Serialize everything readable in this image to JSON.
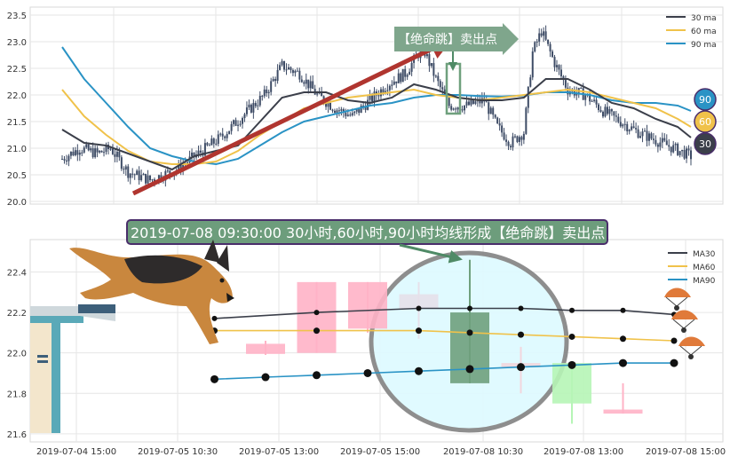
{
  "chart_data": [
    {
      "type": "line",
      "subtype": "candlestick-with-moving-averages",
      "title": "",
      "xlabel": "",
      "ylabel": "",
      "ylim": [
        19.95,
        23.65
      ],
      "y_ticks": [
        "20.0",
        "20.5",
        "21.0",
        "21.5",
        "22.0",
        "22.5",
        "23.0",
        "23.5"
      ],
      "grid": true,
      "legend_position": "top-right",
      "legend": [
        "30 ma",
        "60 ma",
        "90 ma"
      ],
      "colors": {
        "ma30": "#3b3f4a",
        "ma60": "#f0c24a",
        "ma90": "#2a93c5",
        "candle": "#3e4c66",
        "arrow": "#b0352f",
        "callout": "#7fa68c"
      },
      "annotation": "【绝命跳】卖出点",
      "end_badges": [
        "90",
        "60",
        "30"
      ],
      "price_path": [
        [
          0,
          20.8
        ],
        [
          8,
          21.0
        ],
        [
          16,
          20.9
        ],
        [
          22,
          21.0
        ],
        [
          30,
          20.55
        ],
        [
          40,
          20.4
        ],
        [
          52,
          20.6
        ],
        [
          62,
          20.9
        ],
        [
          72,
          21.2
        ],
        [
          82,
          21.6
        ],
        [
          92,
          22.0
        ],
        [
          100,
          22.55
        ],
        [
          108,
          22.4
        ],
        [
          116,
          22.0
        ],
        [
          124,
          21.75
        ],
        [
          132,
          21.6
        ],
        [
          140,
          21.9
        ],
        [
          148,
          22.2
        ],
        [
          156,
          22.4
        ],
        [
          164,
          22.9
        ],
        [
          170,
          22.3
        ],
        [
          176,
          21.8
        ],
        [
          184,
          21.8
        ],
        [
          192,
          21.9
        ],
        [
          198,
          21.4
        ],
        [
          204,
          21.1
        ],
        [
          210,
          21.3
        ],
        [
          214,
          22.8
        ],
        [
          218,
          23.2
        ],
        [
          224,
          22.6
        ],
        [
          230,
          22.1
        ],
        [
          238,
          22.0
        ],
        [
          246,
          21.7
        ],
        [
          254,
          21.5
        ],
        [
          262,
          21.3
        ],
        [
          270,
          21.15
        ],
        [
          278,
          21.0
        ],
        [
          286,
          20.85
        ]
      ],
      "ma30": [
        [
          0,
          21.35
        ],
        [
          10,
          21.1
        ],
        [
          20,
          21.05
        ],
        [
          30,
          20.9
        ],
        [
          40,
          20.75
        ],
        [
          50,
          20.6
        ],
        [
          60,
          20.85
        ],
        [
          70,
          20.95
        ],
        [
          80,
          21.05
        ],
        [
          90,
          21.5
        ],
        [
          100,
          21.95
        ],
        [
          110,
          22.05
        ],
        [
          120,
          22.05
        ],
        [
          130,
          21.9
        ],
        [
          140,
          21.85
        ],
        [
          150,
          21.95
        ],
        [
          160,
          22.2
        ],
        [
          170,
          22.1
        ],
        [
          180,
          21.95
        ],
        [
          190,
          21.9
        ],
        [
          200,
          21.9
        ],
        [
          210,
          21.95
        ],
        [
          220,
          22.3
        ],
        [
          230,
          22.3
        ],
        [
          240,
          22.1
        ],
        [
          250,
          21.85
        ],
        [
          260,
          21.75
        ],
        [
          270,
          21.55
        ],
        [
          280,
          21.4
        ],
        [
          286,
          21.2
        ]
      ],
      "ma60": [
        [
          0,
          22.1
        ],
        [
          10,
          21.6
        ],
        [
          20,
          21.25
        ],
        [
          30,
          20.95
        ],
        [
          40,
          20.75
        ],
        [
          50,
          20.7
        ],
        [
          60,
          20.7
        ],
        [
          70,
          20.75
        ],
        [
          80,
          20.95
        ],
        [
          90,
          21.25
        ],
        [
          100,
          21.5
        ],
        [
          110,
          21.75
        ],
        [
          120,
          21.85
        ],
        [
          130,
          21.95
        ],
        [
          140,
          22.0
        ],
        [
          150,
          22.05
        ],
        [
          160,
          22.1
        ],
        [
          170,
          22.0
        ],
        [
          180,
          21.95
        ],
        [
          190,
          21.9
        ],
        [
          200,
          21.95
        ],
        [
          210,
          22.0
        ],
        [
          220,
          22.05
        ],
        [
          230,
          22.1
        ],
        [
          240,
          22.05
        ],
        [
          250,
          21.95
        ],
        [
          260,
          21.85
        ],
        [
          270,
          21.75
        ],
        [
          280,
          21.55
        ],
        [
          286,
          21.4
        ]
      ],
      "ma90": [
        [
          0,
          22.9
        ],
        [
          10,
          22.3
        ],
        [
          20,
          21.85
        ],
        [
          30,
          21.4
        ],
        [
          40,
          21.0
        ],
        [
          50,
          20.85
        ],
        [
          60,
          20.75
        ],
        [
          70,
          20.7
        ],
        [
          80,
          20.8
        ],
        [
          90,
          21.05
        ],
        [
          100,
          21.3
        ],
        [
          110,
          21.5
        ],
        [
          120,
          21.6
        ],
        [
          130,
          21.7
        ],
        [
          140,
          21.8
        ],
        [
          150,
          21.85
        ],
        [
          160,
          21.95
        ],
        [
          170,
          22.0
        ],
        [
          180,
          22.0
        ],
        [
          190,
          21.98
        ],
        [
          200,
          21.97
        ],
        [
          210,
          21.99
        ],
        [
          220,
          22.05
        ],
        [
          230,
          22.05
        ],
        [
          240,
          22.0
        ],
        [
          250,
          21.9
        ],
        [
          260,
          21.85
        ],
        [
          270,
          21.85
        ],
        [
          280,
          21.8
        ],
        [
          286,
          21.7
        ]
      ]
    },
    {
      "type": "bar",
      "subtype": "candlestick-with-moving-averages",
      "title": "",
      "xlabel": "",
      "ylabel": "",
      "ylim": [
        21.56,
        22.56
      ],
      "y_ticks": [
        "21.6",
        "21.8",
        "22.0",
        "22.2",
        "22.4"
      ],
      "x_ticks": [
        "2019-07-04 15:00",
        "2019-07-05 10:30",
        "2019-07-05 13:00",
        "2019-07-05 15:00",
        "2019-07-08 10:30",
        "2019-07-08 13:00",
        "2019-07-08 15:00"
      ],
      "grid": true,
      "legend_position": "top-right",
      "legend": [
        "MA30",
        "MA60",
        "MA90"
      ],
      "colors": {
        "ma30": "#3b3f4a",
        "ma60": "#f0c24a",
        "ma90": "#2a93c5",
        "up": "#ffb3c6",
        "down": "#b6f5b6",
        "highlight": "#6fa07d",
        "circle_fill": "#dffaff",
        "circle_stroke": "#888888"
      },
      "annotation": "2019-07-08 09:30:00 30小时,60小时,90小时均线形成【绝命跳】卖出点",
      "candles": [
        {
          "x": 0,
          "open": 21.995,
          "high": 22.06,
          "low": 21.99,
          "close": 22.045
        },
        {
          "x": 1,
          "open": 22.0,
          "high": 22.35,
          "low": 22.0,
          "close": 22.35
        },
        {
          "x": 2,
          "open": 22.12,
          "high": 22.35,
          "low": 22.1,
          "close": 22.35
        },
        {
          "x": 3,
          "open": 22.22,
          "high": 22.35,
          "low": 22.07,
          "close": 22.29
        },
        {
          "x": 4,
          "open": 22.2,
          "high": 22.46,
          "low": 21.85,
          "close": 21.85
        },
        {
          "x": 5,
          "open": 21.93,
          "high": 22.03,
          "low": 21.8,
          "close": 21.95
        },
        {
          "x": 6,
          "open": 21.95,
          "high": 21.95,
          "low": 21.65,
          "close": 21.75
        },
        {
          "x": 7,
          "open": 21.7,
          "high": 21.85,
          "low": 21.7,
          "close": 21.72
        }
      ],
      "ma30": [
        [
          -1,
          22.17
        ],
        [
          1,
          22.2
        ],
        [
          3,
          22.22
        ],
        [
          4,
          22.22
        ],
        [
          5,
          22.22
        ],
        [
          6,
          22.21
        ],
        [
          7,
          22.21
        ],
        [
          8,
          22.19
        ]
      ],
      "ma60": [
        [
          -1,
          22.11
        ],
        [
          1,
          22.11
        ],
        [
          3,
          22.11
        ],
        [
          4,
          22.1
        ],
        [
          5,
          22.09
        ],
        [
          6,
          22.08
        ],
        [
          7,
          22.07
        ],
        [
          8,
          22.06
        ]
      ],
      "ma90": [
        [
          -1,
          21.87
        ],
        [
          0,
          21.88
        ],
        [
          1,
          21.89
        ],
        [
          2,
          21.9
        ],
        [
          3,
          21.91
        ],
        [
          4,
          21.92
        ],
        [
          5,
          21.93
        ],
        [
          6,
          21.94
        ],
        [
          7,
          21.95
        ],
        [
          8,
          21.95
        ]
      ]
    }
  ]
}
